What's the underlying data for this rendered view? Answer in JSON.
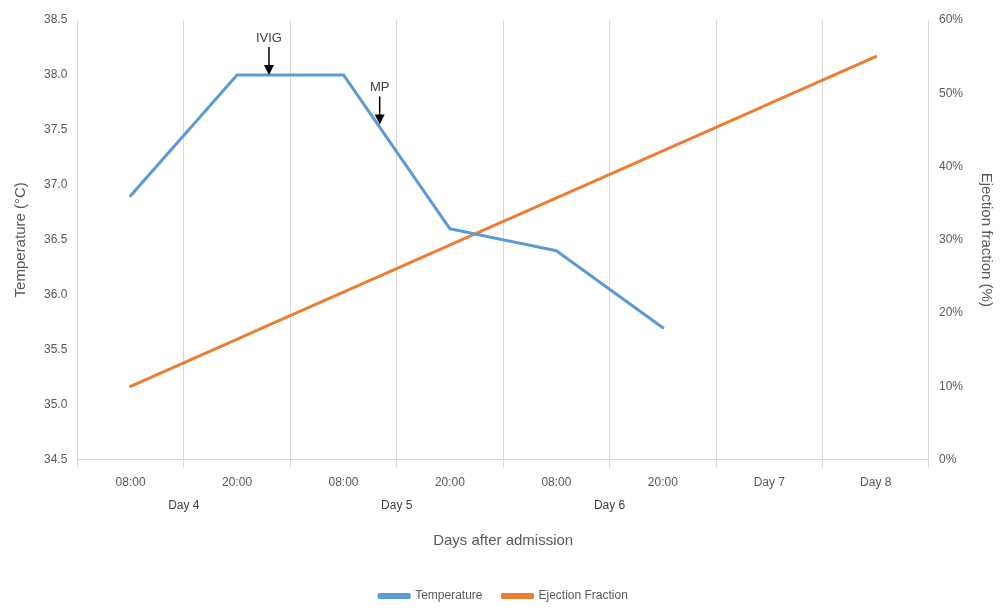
{
  "chart_data": {
    "type": "line",
    "xlabel": "Days after admission",
    "ylabel": "Temperature (°C)",
    "y2label": "Ejection fraction (%)",
    "categories": [
      "08:00",
      "20:00",
      "08:00",
      "20:00",
      "08:00",
      "20:00",
      "Day 7",
      "Day 8"
    ],
    "series": [
      {
        "name": "Temperature",
        "color": "#5b9bd5",
        "values": [
          36.9,
          38.0,
          38.0,
          36.6,
          36.4,
          35.7,
          null,
          null
        ]
      },
      {
        "name": "Ejection Fraction",
        "color": "#ed7d31",
        "axis": "y2",
        "values": [
          10,
          null,
          null,
          null,
          null,
          null,
          null,
          55
        ]
      }
    ],
    "ylim": [
      34.5,
      38.5
    ],
    "yticks": [
      34.5,
      {
        "value": 35,
        "label": "35.0"
      },
      35.5,
      {
        "value": 36,
        "label": "36.0"
      },
      36.5,
      {
        "value": 37,
        "label": "37.0"
      },
      37.5,
      {
        "value": 38,
        "label": "38.0"
      },
      38.5
    ],
    "y2lim": [
      0,
      60
    ],
    "y2ticks": [
      {
        "value": 0,
        "label": "0%"
      },
      {
        "value": 10,
        "label": "10%"
      },
      {
        "value": 20,
        "label": "20%"
      },
      {
        "value": 30,
        "label": "30%"
      },
      {
        "value": 40,
        "label": "40%"
      },
      {
        "value": 50,
        "label": "50%"
      },
      {
        "value": 60,
        "label": "60%"
      }
    ],
    "annotations": [
      {
        "text": "IVIG",
        "y": 38.0
      },
      {
        "text": "MP",
        "y": 37.55
      },
      "Day 4",
      "Day 5",
      "Day 6"
    ],
    "grid": "x",
    "legend": "bottom",
    "marker": "none",
    "line_style": "solid"
  }
}
